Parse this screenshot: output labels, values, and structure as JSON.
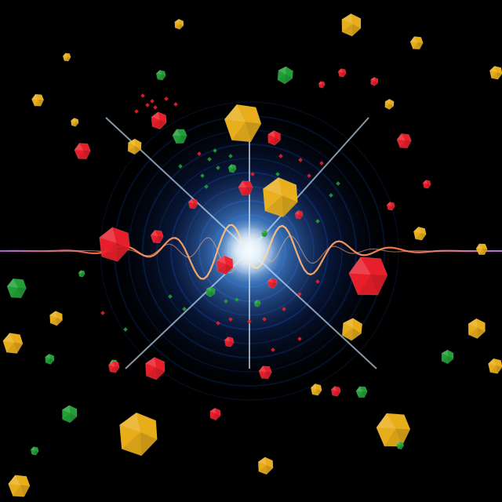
{
  "scene": {
    "subject": "abstract-burst",
    "background_color": "#000000",
    "center_glow_color": "#2f6fff",
    "center_core_color": "#ffffff",
    "ripple_color": "#0d3f9a",
    "wave_color": "#ff8a3d",
    "wave_accent_color": "#7b4dff",
    "horizontal_line_color": "#ff6a2e",
    "shard_colors": {
      "yellow": "#f2b51d",
      "red": "#f2212d",
      "green": "#24a63a"
    }
  }
}
